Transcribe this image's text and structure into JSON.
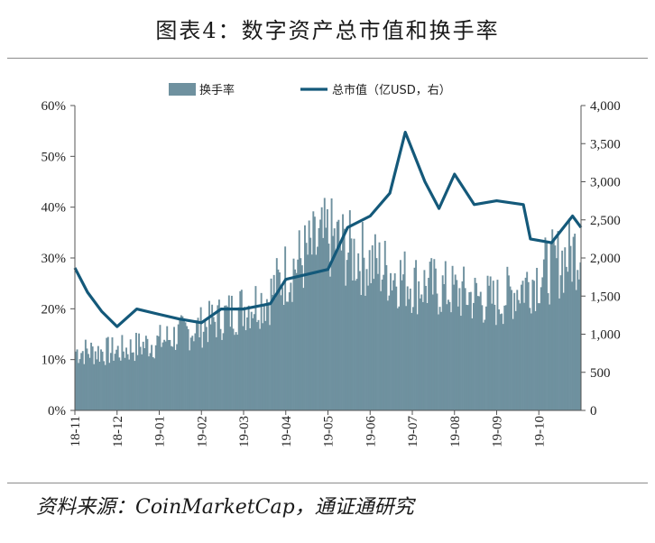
{
  "title": "图表4：数字资产总市值和换手率",
  "source": "资料来源：CoinMarketCap，通证通研究",
  "chart_data": {
    "type": "bar+line",
    "x_tick_labels": [
      "18-11",
      "18-12",
      "19-01",
      "19-02",
      "19-03",
      "19-04",
      "19-05",
      "19-06",
      "19-07",
      "19-08",
      "19-09",
      "19-10"
    ],
    "series": [
      {
        "name": "换手率",
        "kind": "bar",
        "axis": "left",
        "color": "#6f919f",
        "x": [
          "2018-11",
          "2018-12",
          "2019-01",
          "2019-02",
          "2019-03",
          "2019-03 late",
          "2019-04",
          "2019-05",
          "2019-06",
          "2019-07",
          "2019-08",
          "2019-09",
          "2019-10 mid",
          "2019-10 end"
        ],
        "values": [
          12,
          12,
          14,
          17,
          21,
          23,
          28,
          35,
          30,
          26,
          24,
          22,
          30,
          33
        ]
      },
      {
        "name": "总市值（亿USD，右）",
        "kind": "line",
        "axis": "right",
        "color": "#14597a",
        "x": [
          "2018-11-01",
          "2018-11-10",
          "2018-11-20",
          "2018-12-01",
          "2018-12-15",
          "2019-01-01",
          "2019-01-15",
          "2019-02-01",
          "2019-02-15",
          "2019-03-01",
          "2019-03-20",
          "2019-04-01",
          "2019-04-15",
          "2019-05-01",
          "2019-05-15",
          "2019-06-01",
          "2019-06-15",
          "2019-06-26",
          "2019-07-10",
          "2019-07-20",
          "2019-08-01",
          "2019-08-15",
          "2019-09-01",
          "2019-09-20",
          "2019-09-25",
          "2019-10-10",
          "2019-10-25",
          "2019-11-01"
        ],
        "values": [
          1870,
          1550,
          1300,
          1100,
          1330,
          1260,
          1200,
          1150,
          1330,
          1330,
          1400,
          1720,
          1780,
          1850,
          2400,
          2550,
          2850,
          3650,
          3000,
          2650,
          3100,
          2700,
          2750,
          2700,
          2250,
          2200,
          2550,
          2400
        ]
      }
    ],
    "y_left": {
      "min": 0,
      "max": 60,
      "ticks": [
        "0%",
        "10%",
        "20%",
        "30%",
        "40%",
        "50%",
        "60%"
      ]
    },
    "y_right": {
      "min": 0,
      "max": 4000,
      "ticks": [
        "0",
        "500",
        "1,000",
        "1,500",
        "2,000",
        "2,500",
        "3,000",
        "3,500",
        "4,000"
      ]
    },
    "legend": {
      "position": "top",
      "items": [
        "换手率",
        "总市值（亿USD，右）"
      ]
    }
  }
}
